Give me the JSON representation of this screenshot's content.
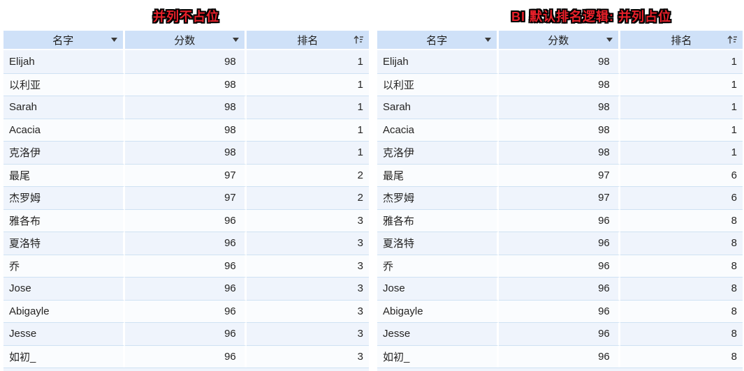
{
  "colors": {
    "title_text": "#e8202a",
    "title_outline": "#000000",
    "header_bg": "#cfe1f8",
    "row_odd_bg": "#eff4fc",
    "row_even_bg": "#fafcfe",
    "row_border": "#cfe2f3",
    "cell_text": "#252423"
  },
  "tables": [
    {
      "title": "并列不占位",
      "columns": [
        {
          "label": "名字",
          "icon": "dropdown-icon"
        },
        {
          "label": "分数",
          "icon": "dropdown-icon"
        },
        {
          "label": "排名",
          "icon": "sort-ascending-icon"
        }
      ],
      "rows": [
        {
          "name": "Elijah",
          "score": "98",
          "rank": "1"
        },
        {
          "name": "以利亚",
          "score": "98",
          "rank": "1"
        },
        {
          "name": "Sarah",
          "score": "98",
          "rank": "1"
        },
        {
          "name": "Acacia",
          "score": "98",
          "rank": "1"
        },
        {
          "name": "克洛伊",
          "score": "98",
          "rank": "1"
        },
        {
          "name": "最尾",
          "score": "97",
          "rank": "2"
        },
        {
          "name": "杰罗姆",
          "score": "97",
          "rank": "2"
        },
        {
          "name": "雅各布",
          "score": "96",
          "rank": "3"
        },
        {
          "name": "夏洛特",
          "score": "96",
          "rank": "3"
        },
        {
          "name": "乔",
          "score": "96",
          "rank": "3"
        },
        {
          "name": "Jose",
          "score": "96",
          "rank": "3"
        },
        {
          "name": "Abigayle",
          "score": "96",
          "rank": "3"
        },
        {
          "name": "Jesse",
          "score": "96",
          "rank": "3"
        },
        {
          "name": "如初_",
          "score": "96",
          "rank": "3"
        }
      ]
    },
    {
      "title": "BI 默认排名逻辑: 并列占位",
      "columns": [
        {
          "label": "名字",
          "icon": "dropdown-icon"
        },
        {
          "label": "分数",
          "icon": "dropdown-icon"
        },
        {
          "label": "排名",
          "icon": "sort-ascending-icon"
        }
      ],
      "rows": [
        {
          "name": "Elijah",
          "score": "98",
          "rank": "1"
        },
        {
          "name": "以利亚",
          "score": "98",
          "rank": "1"
        },
        {
          "name": "Sarah",
          "score": "98",
          "rank": "1"
        },
        {
          "name": "Acacia",
          "score": "98",
          "rank": "1"
        },
        {
          "name": "克洛伊",
          "score": "98",
          "rank": "1"
        },
        {
          "name": "最尾",
          "score": "97",
          "rank": "6"
        },
        {
          "name": "杰罗姆",
          "score": "97",
          "rank": "6"
        },
        {
          "name": "雅各布",
          "score": "96",
          "rank": "8"
        },
        {
          "name": "夏洛特",
          "score": "96",
          "rank": "8"
        },
        {
          "name": "乔",
          "score": "96",
          "rank": "8"
        },
        {
          "name": "Jose",
          "score": "96",
          "rank": "8"
        },
        {
          "name": "Abigayle",
          "score": "96",
          "rank": "8"
        },
        {
          "name": "Jesse",
          "score": "96",
          "rank": "8"
        },
        {
          "name": "如初_",
          "score": "96",
          "rank": "8"
        }
      ]
    }
  ]
}
